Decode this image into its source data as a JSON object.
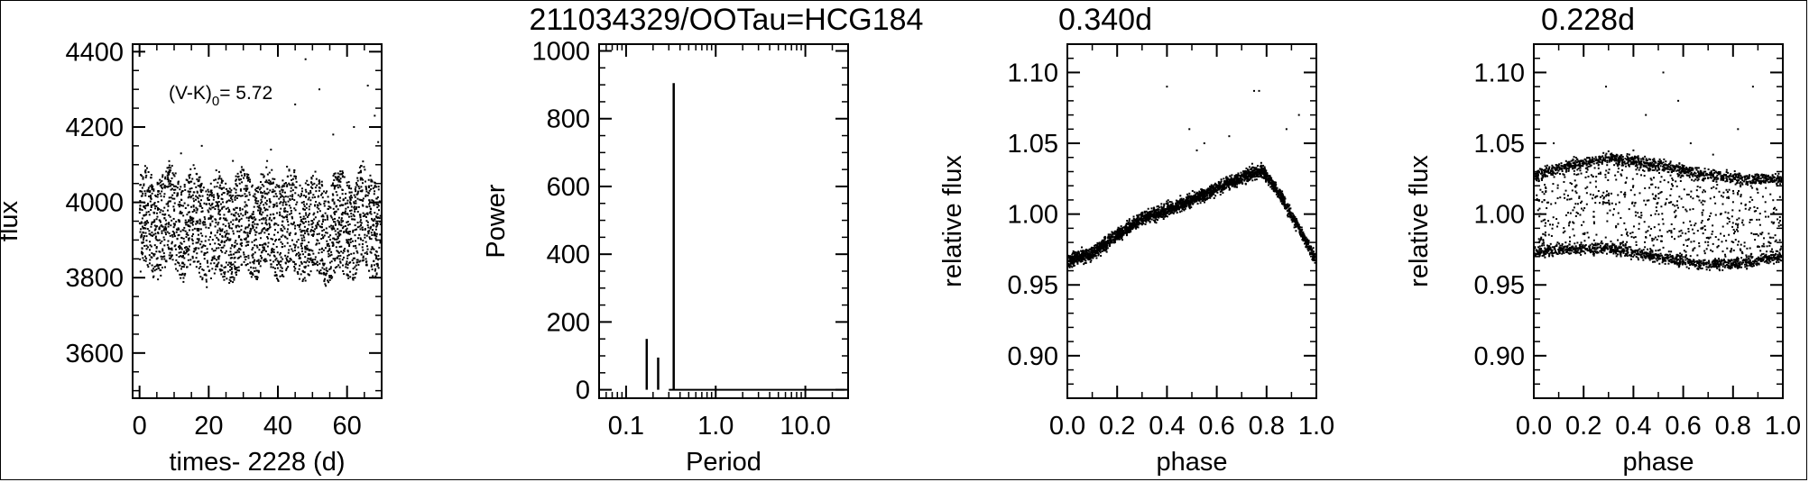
{
  "figure": {
    "titles": [
      "211034329/OOTau=HCG184",
      "0.340d",
      "0.228d"
    ]
  },
  "chart_data": [
    {
      "type": "scatter",
      "xlabel": "times- 2228 (d)",
      "ylabel": "flux",
      "xlim": [
        -2,
        70
      ],
      "ylim": [
        3480,
        4420
      ],
      "xticks": [
        0,
        20,
        40,
        60
      ],
      "yticks": [
        3600,
        3800,
        4000,
        4200,
        4400
      ],
      "annotation": {
        "main": "(V-K)",
        "sub": "0",
        "value": "= 5.72"
      },
      "description": "dense band of points between ~3790 and ~4070 flux over 0–70 d with scattered outliers up to ~4380",
      "band": {
        "center": 3940,
        "half_width": 140
      },
      "outliers": [
        [
          12,
          4130
        ],
        [
          18,
          4150
        ],
        [
          27,
          4110
        ],
        [
          38,
          4140
        ],
        [
          45,
          4260
        ],
        [
          48,
          4380
        ],
        [
          52,
          4300
        ],
        [
          56,
          4180
        ],
        [
          62,
          4200
        ],
        [
          66,
          4310
        ],
        [
          68,
          4230
        ],
        [
          69,
          4160
        ]
      ]
    },
    {
      "type": "bar",
      "xlabel": "Period",
      "ylabel": "Power",
      "xscale": "log",
      "xlim": [
        0.05,
        30
      ],
      "ylim": [
        -25,
        1020
      ],
      "xtick_labels": [
        "0.1",
        "1.0",
        "10.0"
      ],
      "yticks": [
        0,
        200,
        400,
        600,
        800,
        1000
      ],
      "peaks": [
        {
          "period": 0.17,
          "power": 150
        },
        {
          "period": 0.228,
          "power": 95
        },
        {
          "period": 0.34,
          "power": 905
        }
      ]
    },
    {
      "type": "scatter",
      "xlabel": "phase",
      "ylabel": "relative flux",
      "xlim": [
        0.0,
        1.0
      ],
      "ylim": [
        0.87,
        1.12
      ],
      "xticks": [
        0.0,
        0.2,
        0.4,
        0.6,
        0.8,
        1.0
      ],
      "yticks": [
        0.9,
        0.95,
        1.0,
        1.05,
        1.1
      ],
      "description": "phased light curve rising from ~0.965 at phase 0 to ~1.03 at phase 0.78 then dropping back",
      "trend": [
        [
          0.0,
          0.967
        ],
        [
          0.1,
          0.972
        ],
        [
          0.2,
          0.985
        ],
        [
          0.3,
          0.997
        ],
        [
          0.4,
          1.003
        ],
        [
          0.5,
          1.01
        ],
        [
          0.6,
          1.018
        ],
        [
          0.7,
          1.026
        ],
        [
          0.78,
          1.031
        ],
        [
          0.85,
          1.015
        ],
        [
          0.92,
          0.993
        ],
        [
          1.0,
          0.967
        ]
      ],
      "outliers": [
        [
          0.4,
          1.09
        ],
        [
          0.49,
          1.06
        ],
        [
          0.55,
          1.05
        ],
        [
          0.75,
          1.087
        ],
        [
          0.77,
          1.087
        ],
        [
          0.88,
          1.06
        ],
        [
          0.93,
          1.07
        ],
        [
          0.52,
          1.045
        ],
        [
          0.65,
          1.055
        ]
      ]
    },
    {
      "type": "scatter",
      "xlabel": "phase",
      "ylabel": "relative flux",
      "xlim": [
        0.0,
        1.0
      ],
      "ylim": [
        0.87,
        1.12
      ],
      "xticks": [
        0.0,
        0.2,
        0.4,
        0.6,
        0.8,
        1.0
      ],
      "yticks": [
        0.9,
        0.95,
        1.0,
        1.05,
        1.1
      ],
      "description": "broad band of points around 1.00 with upper envelope ~1.035 peaking near phase 0.3 and lower envelope ~0.96",
      "trend": [
        [
          0.0,
          1.0
        ],
        [
          0.15,
          1.005
        ],
        [
          0.3,
          1.008
        ],
        [
          0.5,
          1.002
        ],
        [
          0.7,
          0.996
        ],
        [
          0.85,
          0.995
        ],
        [
          1.0,
          0.998
        ]
      ],
      "outliers": [
        [
          0.08,
          1.05
        ],
        [
          0.29,
          1.09
        ],
        [
          0.45,
          1.07
        ],
        [
          0.52,
          1.1
        ],
        [
          0.58,
          1.08
        ],
        [
          0.63,
          1.05
        ],
        [
          0.82,
          1.06
        ],
        [
          0.88,
          1.09
        ],
        [
          0.4,
          1.045
        ],
        [
          0.72,
          1.042
        ]
      ]
    }
  ]
}
